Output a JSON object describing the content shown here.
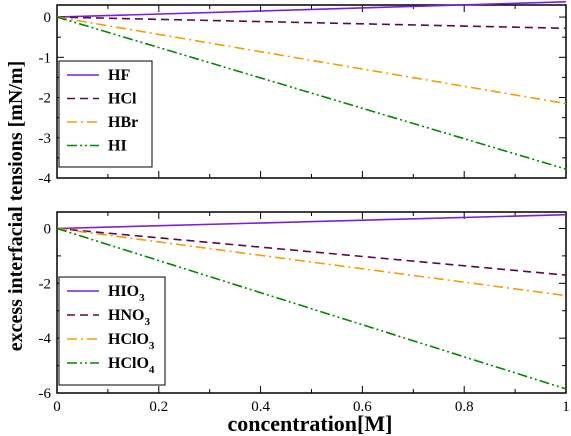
{
  "chart_data": [
    {
      "type": "line",
      "xlim": [
        0,
        1
      ],
      "ylim": [
        -4,
        0.3
      ],
      "yticks": [
        0,
        -1,
        -2,
        -3,
        -4
      ],
      "ytick_labels": [
        "0",
        "-1",
        "-2",
        "-3",
        "-4"
      ],
      "xticks": [
        0,
        0.2,
        0.4,
        0.6,
        0.8,
        1
      ],
      "xtick_labels": [],
      "grid": false,
      "legend_position": "left",
      "series": [
        {
          "name": "HF",
          "x": [
            0,
            1
          ],
          "y": [
            0,
            0.38
          ],
          "color": "#7b1fd6",
          "dash": ""
        },
        {
          "name": "HCl",
          "x": [
            0,
            1
          ],
          "y": [
            0,
            -0.28
          ],
          "color": "#5a0a4a",
          "dash": "8,5"
        },
        {
          "name": "HBr",
          "x": [
            0,
            1
          ],
          "y": [
            0,
            -2.15
          ],
          "color": "#f0a000",
          "dash": "10,4,2,4"
        },
        {
          "name": "HI",
          "x": [
            0,
            1
          ],
          "y": [
            0,
            -3.78
          ],
          "color": "#008800",
          "dash": "10,3,2,3,2,3"
        }
      ],
      "legend": [
        {
          "base": "HF",
          "sub": ""
        },
        {
          "base": "HCl",
          "sub": ""
        },
        {
          "base": "HBr",
          "sub": ""
        },
        {
          "base": "HI",
          "sub": ""
        }
      ]
    },
    {
      "type": "line",
      "xlim": [
        0,
        1
      ],
      "ylim": [
        -6,
        0.6
      ],
      "yticks": [
        0,
        -2,
        -4,
        -6
      ],
      "ytick_labels": [
        "0",
        "-2",
        "-4",
        "-6"
      ],
      "xticks": [
        0,
        0.2,
        0.4,
        0.6,
        0.8,
        1
      ],
      "xtick_labels": [
        "0",
        "0.2",
        "0.4",
        "0.6",
        "0.8",
        "1"
      ],
      "grid": false,
      "legend_position": "left",
      "series": [
        {
          "name": "HIO3",
          "x": [
            0,
            1
          ],
          "y": [
            0,
            0.5
          ],
          "color": "#7b1fd6",
          "dash": ""
        },
        {
          "name": "HNO3",
          "x": [
            0,
            1
          ],
          "y": [
            0,
            -1.7
          ],
          "color": "#5a0a4a",
          "dash": "8,5"
        },
        {
          "name": "HClO3",
          "x": [
            0,
            1
          ],
          "y": [
            0,
            -2.45
          ],
          "color": "#f0a000",
          "dash": "10,4,2,4"
        },
        {
          "name": "HClO4",
          "x": [
            0,
            1
          ],
          "y": [
            0,
            -5.85
          ],
          "color": "#008800",
          "dash": "10,3,2,3,2,3"
        }
      ],
      "legend": [
        {
          "base": "HIO",
          "sub": "3"
        },
        {
          "base": "HNO",
          "sub": "3"
        },
        {
          "base": "HClO",
          "sub": "3"
        },
        {
          "base": "HClO",
          "sub": "4"
        }
      ]
    }
  ],
  "ylabel": "excess interfacial tensions [mN/m]",
  "xlabel": "concentration[M]"
}
